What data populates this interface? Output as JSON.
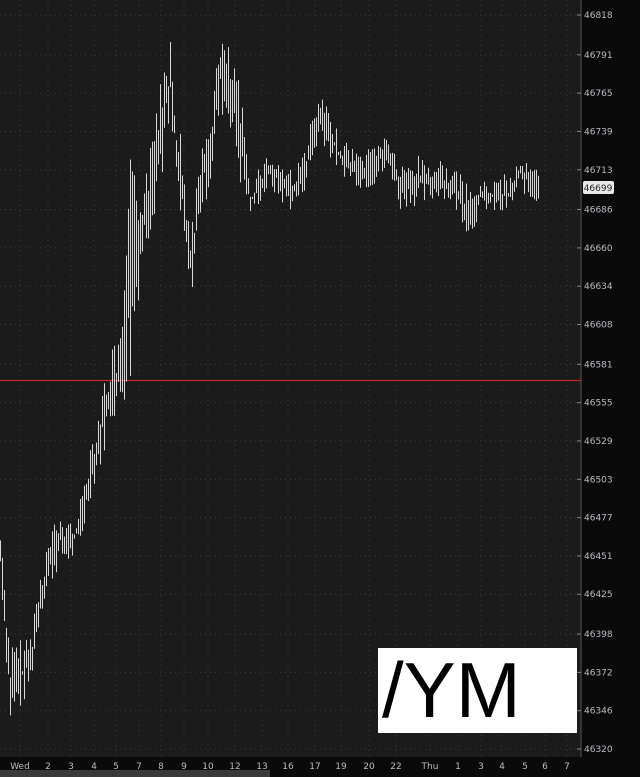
{
  "chart_data": {
    "type": "ohlc-bar",
    "symbol": "/YM",
    "last_price": 46699,
    "reference_line": {
      "value": 46570,
      "color": "#c0282d"
    },
    "ylim": [
      46320,
      46818
    ],
    "y_ticks": [
      46818,
      46791,
      46765,
      46739,
      46713,
      46686,
      46660,
      46634,
      46608,
      46581,
      46555,
      46529,
      46503,
      46477,
      46451,
      46425,
      46398,
      46372,
      46346,
      46320
    ],
    "x_ticks": [
      "Wed",
      "2",
      "3",
      "4",
      "5",
      "7",
      "8",
      "9",
      "10",
      "12",
      "13",
      "16",
      "17",
      "19",
      "20",
      "22",
      "Thu",
      "1",
      "3",
      "4",
      "5",
      "6",
      "7"
    ],
    "grid": true,
    "colors": {
      "background": "#1b1b1b",
      "bars": "#d8d8d8",
      "axis": "#0a0a0a",
      "grid": "#3a3a3a"
    },
    "bars": [
      [
        46440,
        46470
      ],
      [
        46335,
        46390
      ],
      [
        46345,
        46395
      ],
      [
        46360,
        46400
      ],
      [
        46410,
        46440
      ],
      [
        46430,
        46470
      ],
      [
        46445,
        46480
      ],
      [
        46445,
        46475
      ],
      [
        46455,
        46490
      ],
      [
        46490,
        46530
      ],
      [
        46510,
        46560
      ],
      [
        46540,
        46590
      ],
      [
        46550,
        46600
      ],
      [
        46560,
        46720
      ],
      [
        46640,
        46710
      ],
      [
        46670,
        46730
      ],
      [
        46700,
        46790
      ],
      [
        46730,
        46818
      ],
      [
        46670,
        46740
      ],
      [
        46620,
        46680
      ],
      [
        46680,
        46720
      ],
      [
        46700,
        46760
      ],
      [
        46750,
        46805
      ],
      [
        46740,
        46795
      ],
      [
        46700,
        46770
      ],
      [
        46683,
        46700
      ],
      [
        46690,
        46720
      ],
      [
        46700,
        46725
      ],
      [
        46690,
        46720
      ],
      [
        46685,
        46715
      ],
      [
        46690,
        46720
      ],
      [
        46710,
        46745
      ],
      [
        46735,
        46765
      ],
      [
        46720,
        46750
      ],
      [
        46710,
        46735
      ],
      [
        46705,
        46730
      ],
      [
        46700,
        46725
      ],
      [
        46700,
        46730
      ],
      [
        46705,
        46740
      ],
      [
        46710,
        46735
      ],
      [
        46685,
        46715
      ],
      [
        46690,
        46720
      ],
      [
        46685,
        46725
      ],
      [
        46690,
        46720
      ],
      [
        46695,
        46720
      ],
      [
        46690,
        46715
      ],
      [
        46680,
        46710
      ],
      [
        46665,
        46700
      ],
      [
        46685,
        46705
      ],
      [
        46685,
        46705
      ],
      [
        46680,
        46710
      ],
      [
        46685,
        46710
      ],
      [
        46700,
        46725
      ],
      [
        46690,
        46715
      ]
    ]
  }
}
